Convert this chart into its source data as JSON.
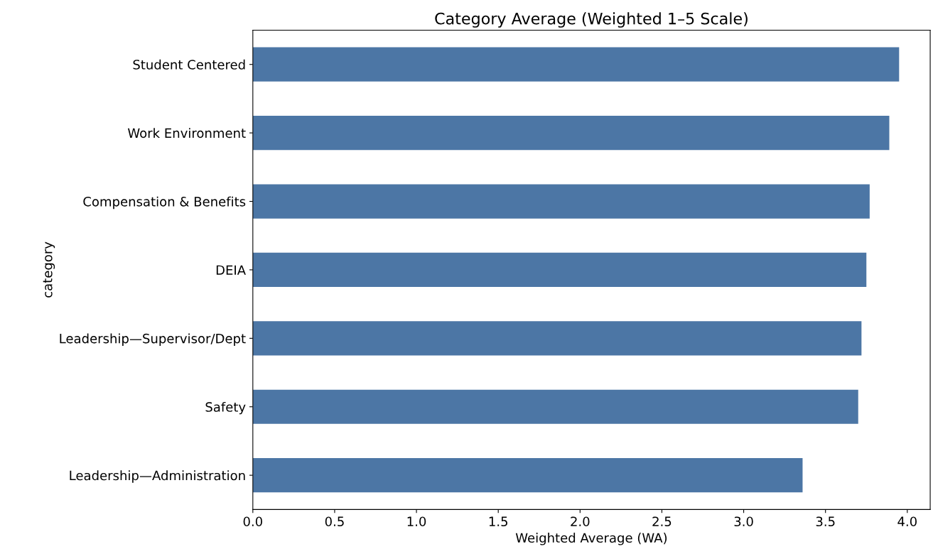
{
  "chart_data": {
    "type": "bar",
    "orientation": "horizontal",
    "title": "Category Average (Weighted 1–5 Scale)",
    "xlabel": "Weighted Average (WA)",
    "ylabel": "category",
    "categories": [
      "Student Centered",
      "Work Environment",
      "Compensation & Benefits",
      "DEIA",
      "Leadership—Supervisor/Dept",
      "Safety",
      "Leadership—Administration"
    ],
    "values": [
      3.95,
      3.89,
      3.77,
      3.75,
      3.72,
      3.7,
      3.36
    ],
    "color": "#4c76a5",
    "xlim": [
      0,
      4.14
    ],
    "xticks": [
      {
        "value": 0,
        "label": "0.0"
      },
      0.5,
      {
        "value": 1,
        "label": "1.0"
      },
      1.5,
      {
        "value": 2,
        "label": "2.0"
      },
      2.5,
      {
        "value": 3,
        "label": "3.0"
      },
      3.5,
      {
        "value": 4,
        "label": "4.0"
      }
    ],
    "grid": false,
    "legend": false
  }
}
